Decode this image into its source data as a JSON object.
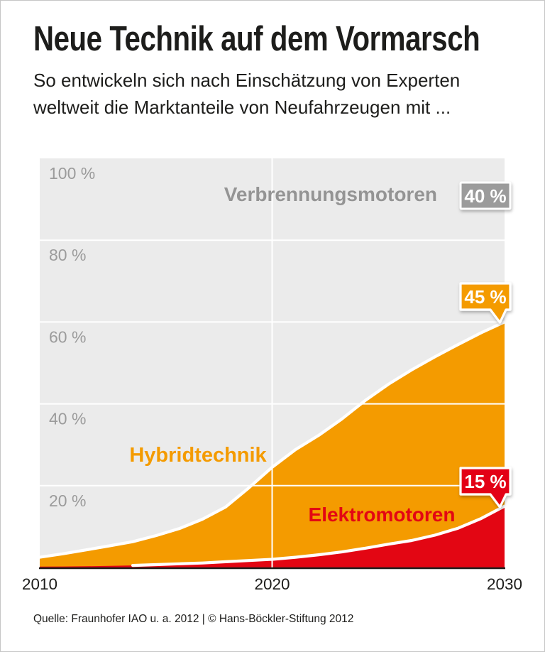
{
  "header": {
    "title": "Neue Technik auf dem Vormarsch",
    "subtitle_line1": "So entwickeln sich nach Einschätzung von Experten",
    "subtitle_line2": "weltweit die Marktanteile von Neufahrzeugen mit ..."
  },
  "footer": {
    "source": "Quelle: Fraunhofer IAO u. a. 2012 | © Hans-Böckler-Stiftung 2012"
  },
  "chart_data": {
    "type": "area",
    "stacked": true,
    "background_color": "#ebebeb",
    "gridline_color": "#ffffff",
    "baseline_color": "#1d1d1b",
    "curve_stroke_color": "#ffffff",
    "ylim": [
      0,
      100
    ],
    "x": [
      2010,
      2011,
      2012,
      2013,
      2014,
      2015,
      2016,
      2017,
      2018,
      2019,
      2020,
      2021,
      2022,
      2023,
      2024,
      2025,
      2026,
      2027,
      2028,
      2029,
      2030
    ],
    "xticks": [
      {
        "label": "2010",
        "year": 2010,
        "gridline": false
      },
      {
        "label": "2020",
        "year": 2020,
        "gridline": true
      },
      {
        "label": "2030",
        "year": 2030,
        "gridline": false
      }
    ],
    "yticks": [
      {
        "label": "100 %",
        "value": 100
      },
      {
        "label": "80 %",
        "value": 80
      },
      {
        "label": "60 %",
        "value": 60
      },
      {
        "label": "40 %",
        "value": 40
      },
      {
        "label": "20 %",
        "value": 20
      }
    ],
    "series": [
      {
        "name": "Elektromotoren",
        "color": "#e30613",
        "badge": "15 %",
        "final_share_2030": 15,
        "values": [
          0.2,
          0.25,
          0.3,
          0.4,
          0.5,
          0.7,
          0.9,
          1.1,
          1.4,
          1.7,
          2.0,
          2.5,
          3.1,
          3.8,
          4.7,
          5.7,
          6.6,
          7.9,
          9.6,
          12.0,
          15.0
        ]
      },
      {
        "name": "Hybridtechnik",
        "color": "#f49b00",
        "badge": "45 %",
        "final_share_2030": 45,
        "values": [
          2.3,
          3.1,
          4.0,
          4.9,
          5.8,
          7.1,
          8.6,
          10.7,
          13.4,
          17.8,
          22.5,
          26.3,
          29.2,
          32.5,
          36.1,
          39.1,
          41.7,
          43.6,
          44.9,
          45.4,
          45.0
        ]
      },
      {
        "name": "Verbrennungsmotoren",
        "color": "#949494",
        "badge_color": "#9b9b9b",
        "badge": "40 %",
        "final_share_2030": 40,
        "values": [
          97.5,
          96.7,
          95.7,
          94.7,
          93.7,
          92.2,
          90.5,
          88.2,
          85.2,
          80.5,
          75.5,
          71.2,
          67.7,
          63.7,
          59.2,
          55.2,
          51.7,
          48.5,
          45.5,
          42.6,
          40.0
        ]
      }
    ]
  }
}
